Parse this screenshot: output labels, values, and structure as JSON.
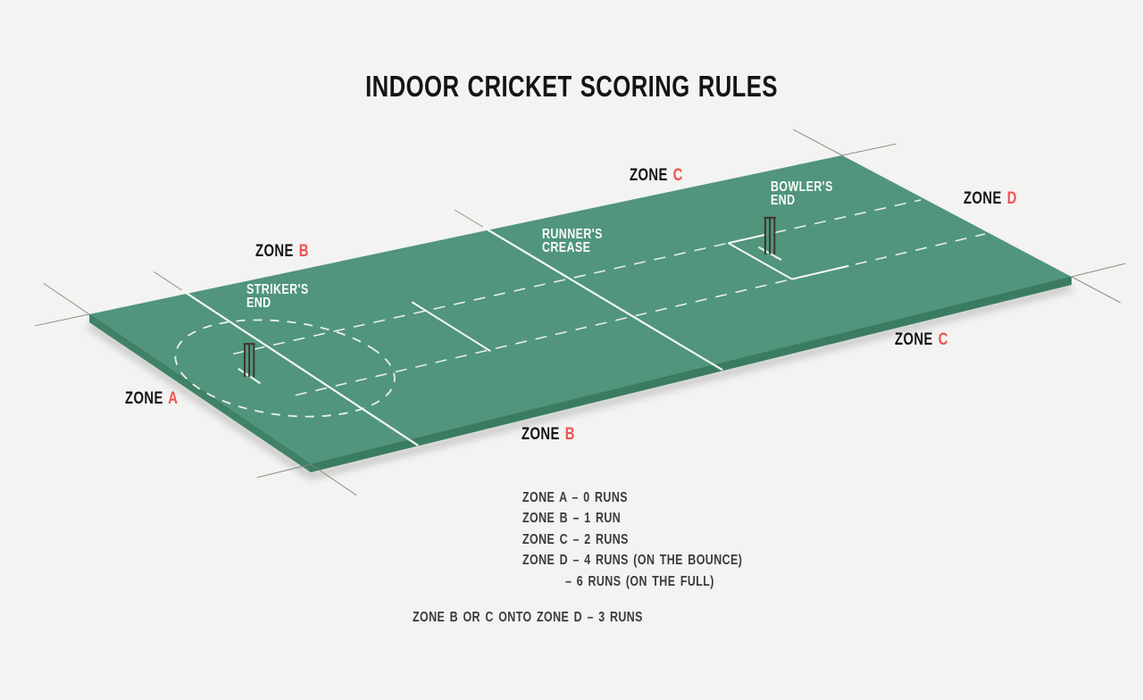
{
  "title": "INDOOR CRICKET SCORING RULES",
  "colors": {
    "background": "#f3f3f1",
    "pitch_top": "#57a186",
    "pitch_side_left": "#3f8268",
    "pitch_side_front": "#3a7c62",
    "line_white": "#fbfbf7",
    "accent_red": "#f0514f",
    "text_dark": "#141414",
    "legend_text": "#3b3b3d",
    "thin_line": "#83837d",
    "stump": "#3b332a"
  },
  "labels": {
    "zone_c_top": {
      "word": "ZONE",
      "letter": "C"
    },
    "zone_d": {
      "word": "ZONE",
      "letter": "D"
    },
    "zone_b_up": {
      "word": "ZONE",
      "letter": "B"
    },
    "zone_a": {
      "word": "ZONE",
      "letter": "A"
    },
    "zone_c_low": {
      "word": "ZONE",
      "letter": "C"
    },
    "zone_b_low": {
      "word": "ZONE",
      "letter": "B"
    },
    "ends": {
      "strikers": {
        "line1": "STRIKER'S",
        "line2": "END"
      },
      "runners": {
        "line1": "RUNNER'S",
        "line2": "CREASE"
      },
      "bowlers": {
        "line1": "BOWLER'S",
        "line2": "END"
      }
    }
  },
  "legend": {
    "items": [
      "ZONE A – 0 RUNS",
      "ZONE B – 1 RUN",
      "ZONE C – 2 RUNS",
      "ZONE D – 4 RUNS (ON THE BOUNCE)",
      "– 6 RUNS (ON THE FULL)"
    ],
    "footnote": "ZONE B OR C ONTO ZONE D – 3 RUNS"
  },
  "pitch": {
    "corners": {
      "west": [
        100,
        352
      ],
      "north": [
        943,
        174
      ],
      "east": [
        1200,
        310
      ],
      "south": [
        348,
        520
      ]
    },
    "thickness": 9,
    "corner_extension": 62,
    "creases": [
      {
        "u": 0.13,
        "v1": -0.02,
        "v2": 1.035,
        "ext_back": -0.15
      },
      {
        "u": 0.53,
        "v1": -0.02,
        "v2": 1.035,
        "ext_back": -0.15
      }
    ],
    "mid_line": {
      "u": 0.34,
      "v1": 0.3,
      "v2": 0.645
    },
    "lanes": [
      {
        "v": 0.36,
        "u1": 0.085,
        "u2": 0.995
      },
      {
        "v": 0.64,
        "u1": 0.085,
        "u2": 0.995
      }
    ],
    "circle": {
      "u": 0.115,
      "v": 0.49,
      "ru": 0.115,
      "rv": 0.3
    },
    "crease_box": {
      "u_left": 0.74,
      "u_top_end": 0.79,
      "u_bot_end": 0.815,
      "v1": 0.36,
      "v2": 0.64
    },
    "wickets": [
      {
        "u": 0.068,
        "v": 0.49,
        "h": 36
      },
      {
        "u": 0.762,
        "v": 0.47,
        "h": 40
      }
    ]
  }
}
